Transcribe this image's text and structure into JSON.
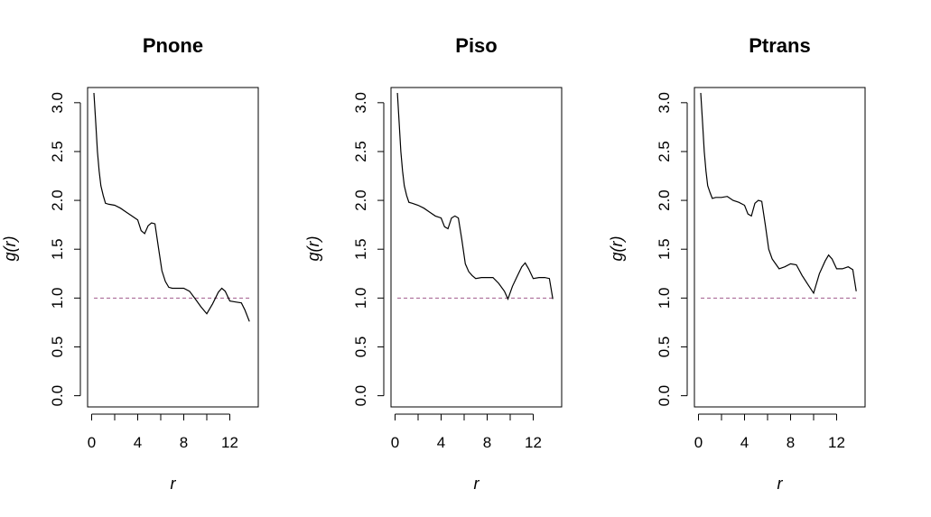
{
  "chart_data": [
    {
      "type": "line",
      "title": "Pnone",
      "xlabel": "r",
      "ylabel": "g(r)",
      "xlim": [
        0,
        14
      ],
      "ylim": [
        -0.05,
        3.1
      ],
      "xticks": [
        0,
        2,
        4,
        6,
        8,
        10,
        12
      ],
      "xtick_labels": [
        "0",
        "",
        "4",
        "",
        "8",
        "",
        "12"
      ],
      "yticks": [
        0.0,
        0.5,
        1.0,
        1.5,
        2.0,
        2.5,
        3.0
      ],
      "ytick_labels": [
        "0.0",
        "0.5",
        "1.0",
        "1.5",
        "2.0",
        "2.5",
        "3.0"
      ],
      "reference_line": {
        "y": 1.0,
        "color": "#a05a8c",
        "style": "dashed"
      },
      "line_color": "#000000",
      "series": [
        {
          "x": [
            0.2,
            0.35,
            0.5,
            0.65,
            0.8,
            1.0,
            1.2,
            1.5,
            2.0,
            2.5,
            3.0,
            3.5,
            4.0,
            4.3,
            4.6,
            4.9,
            5.2,
            5.5,
            5.8,
            6.1,
            6.4,
            6.7,
            7.0,
            7.5,
            8.0,
            8.5,
            9.0,
            9.5,
            10.0,
            10.5,
            11.0,
            11.3,
            11.6,
            12.0,
            12.5,
            13.0,
            13.3,
            13.7
          ],
          "y": [
            3.1,
            2.8,
            2.5,
            2.3,
            2.15,
            2.05,
            1.97,
            1.96,
            1.95,
            1.92,
            1.88,
            1.84,
            1.8,
            1.69,
            1.66,
            1.74,
            1.77,
            1.76,
            1.52,
            1.28,
            1.17,
            1.11,
            1.1,
            1.1,
            1.1,
            1.07,
            0.99,
            0.91,
            0.84,
            0.94,
            1.06,
            1.1,
            1.07,
            0.97,
            0.96,
            0.95,
            0.88,
            0.76
          ]
        }
      ]
    },
    {
      "type": "line",
      "title": "Piso",
      "xlabel": "r",
      "ylabel": "g(r)",
      "xlim": [
        0,
        14
      ],
      "ylim": [
        -0.05,
        3.1
      ],
      "xticks": [
        0,
        2,
        4,
        6,
        8,
        10,
        12
      ],
      "xtick_labels": [
        "0",
        "",
        "4",
        "",
        "8",
        "",
        "12"
      ],
      "yticks": [
        0.0,
        0.5,
        1.0,
        1.5,
        2.0,
        2.5,
        3.0
      ],
      "ytick_labels": [
        "0.0",
        "0.5",
        "1.0",
        "1.5",
        "2.0",
        "2.5",
        "3.0"
      ],
      "reference_line": {
        "y": 1.0,
        "color": "#a05a8c",
        "style": "dashed"
      },
      "line_color": "#000000",
      "series": [
        {
          "x": [
            0.2,
            0.35,
            0.5,
            0.65,
            0.8,
            1.0,
            1.2,
            1.5,
            2.0,
            2.5,
            3.0,
            3.5,
            4.0,
            4.3,
            4.6,
            4.9,
            5.2,
            5.5,
            5.8,
            6.1,
            6.4,
            6.7,
            7.0,
            7.5,
            8.0,
            8.5,
            9.0,
            9.5,
            9.8,
            10.2,
            10.6,
            11.0,
            11.3,
            11.6,
            12.0,
            12.5,
            13.0,
            13.4,
            13.7
          ],
          "y": [
            3.1,
            2.8,
            2.5,
            2.3,
            2.15,
            2.05,
            1.98,
            1.97,
            1.95,
            1.92,
            1.88,
            1.84,
            1.82,
            1.73,
            1.71,
            1.82,
            1.84,
            1.82,
            1.6,
            1.35,
            1.27,
            1.23,
            1.2,
            1.21,
            1.21,
            1.21,
            1.15,
            1.07,
            0.99,
            1.12,
            1.22,
            1.32,
            1.36,
            1.3,
            1.2,
            1.21,
            1.21,
            1.2,
            0.99
          ]
        }
      ]
    },
    {
      "type": "line",
      "title": "Ptrans",
      "xlabel": "r",
      "ylabel": "g(r)",
      "xlim": [
        0,
        14
      ],
      "ylim": [
        -0.05,
        3.1
      ],
      "xticks": [
        0,
        2,
        4,
        6,
        8,
        10,
        12
      ],
      "xtick_labels": [
        "0",
        "",
        "4",
        "",
        "8",
        "",
        "12"
      ],
      "yticks": [
        0.0,
        0.5,
        1.0,
        1.5,
        2.0,
        2.5,
        3.0
      ],
      "ytick_labels": [
        "0.0",
        "0.5",
        "1.0",
        "1.5",
        "2.0",
        "2.5",
        "3.0"
      ],
      "reference_line": {
        "y": 1.0,
        "color": "#a05a8c",
        "style": "dashed"
      },
      "line_color": "#000000",
      "series": [
        {
          "x": [
            0.2,
            0.35,
            0.5,
            0.65,
            0.8,
            1.0,
            1.2,
            1.5,
            2.0,
            2.5,
            3.0,
            3.5,
            4.0,
            4.3,
            4.6,
            4.9,
            5.2,
            5.5,
            5.8,
            6.1,
            6.4,
            6.7,
            7.0,
            7.5,
            8.0,
            8.5,
            9.0,
            9.5,
            10.0,
            10.5,
            11.0,
            11.3,
            11.6,
            12.0,
            12.5,
            13.0,
            13.4,
            13.7
          ],
          "y": [
            3.1,
            2.8,
            2.5,
            2.3,
            2.15,
            2.08,
            2.02,
            2.03,
            2.03,
            2.04,
            2.0,
            1.98,
            1.95,
            1.86,
            1.84,
            1.97,
            2.0,
            1.99,
            1.75,
            1.5,
            1.4,
            1.35,
            1.3,
            1.32,
            1.35,
            1.34,
            1.23,
            1.14,
            1.05,
            1.25,
            1.38,
            1.44,
            1.4,
            1.3,
            1.3,
            1.32,
            1.29,
            1.07
          ]
        }
      ]
    }
  ]
}
